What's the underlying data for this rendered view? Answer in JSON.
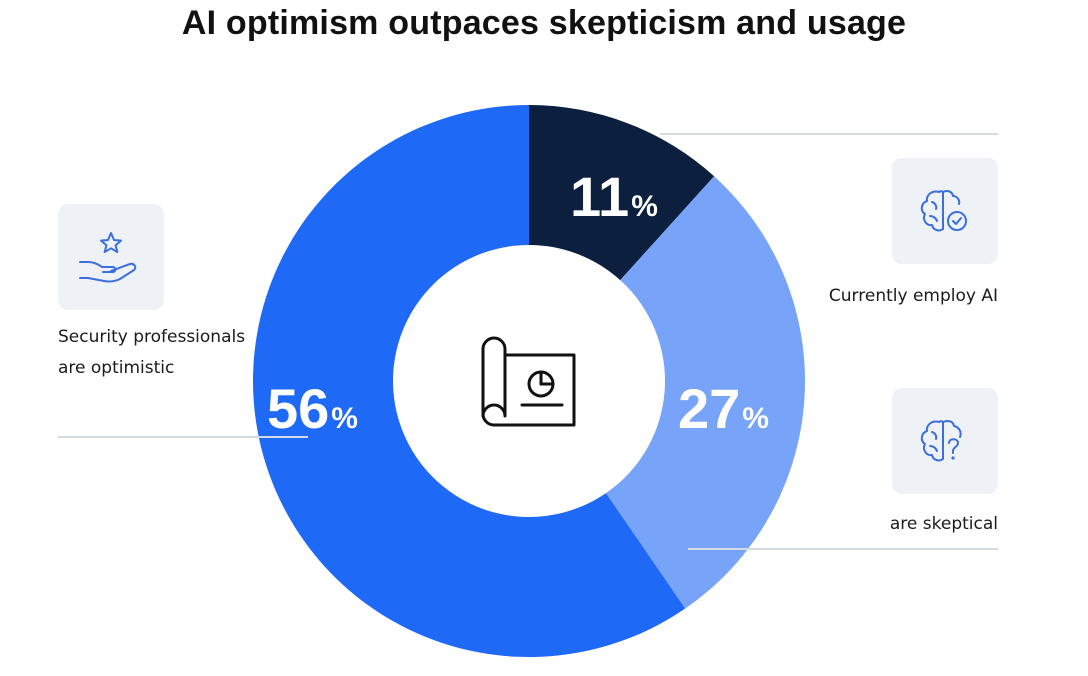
{
  "chart_data": {
    "type": "pie",
    "title": "AI optimism outpaces skepticism and usage",
    "slices": [
      {
        "value": 11,
        "label": "11",
        "unit": "%",
        "caption": "Currently employ AI",
        "color": "#0d1f3f"
      },
      {
        "value": 27,
        "label": "27",
        "unit": "%",
        "caption": "are skeptical",
        "color": "#77a4f8"
      },
      {
        "value": 56,
        "label": "56",
        "unit": "%",
        "caption": "Security professionals are optimistic",
        "color": "#1f69f7"
      }
    ]
  },
  "captions": {
    "optimistic": "Security professionals are optimistic",
    "employ": "Currently employ AI",
    "skeptical": "are skeptical"
  },
  "icons": {
    "center": "blueprint-chart-icon",
    "optimistic": "hand-star-icon",
    "employ": "brain-check-icon",
    "skeptical": "brain-question-icon"
  },
  "colors": {
    "dark": "#0d1f3f",
    "light": "#77a4f8",
    "primary": "#1f69f7",
    "icon_stroke": "#3b6fe0",
    "icon_bg": "#eef1f6",
    "rule": "#d3dae4"
  }
}
